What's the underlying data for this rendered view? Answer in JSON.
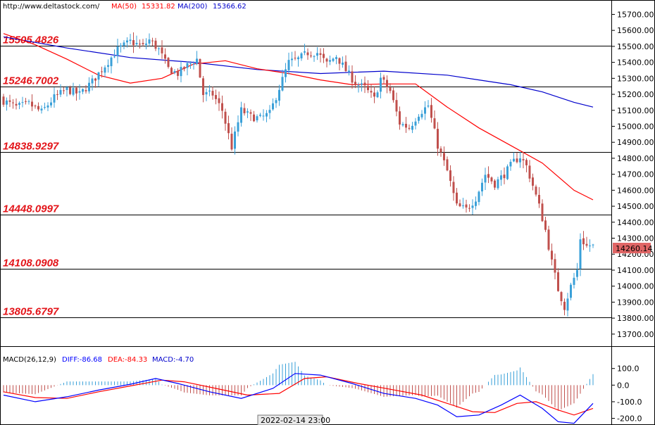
{
  "header": {
    "source": "http://www.deltastock.com/",
    "ma50_label": "MA(50)",
    "ma50_value": "15331.82",
    "ma200_label": "MA(200)",
    "ma200_value": "15366.62"
  },
  "colors": {
    "bull": "#3aa0d8",
    "bear": "#c0504d",
    "ma50": "#ff0000",
    "ma200": "#0000cc",
    "level_text": "#e3151a",
    "price_tag_bg": "#e06666",
    "macd_diff": "#0000ff",
    "macd_dea": "#ff0000",
    "hist_pos": "#3aa0d8",
    "hist_neg": "#c0504d"
  },
  "price_tag": "14260.14",
  "date_label": "2022-02-14 23:00",
  "macd_header": {
    "title": "MACD(26,12,9)",
    "diff": "DIFF:-86.68",
    "dea": "DEA:-84.33",
    "macd": "MACD:-4.70"
  },
  "chart_data": [
    {
      "type": "candlestick",
      "ylim": [
        13620,
        15790
      ],
      "yticks": [
        13700,
        13800,
        13900,
        14000,
        14100,
        14200,
        14300,
        14400,
        14500,
        14600,
        14700,
        14800,
        14900,
        15000,
        15100,
        15200,
        15300,
        15400,
        15500,
        15600,
        15700
      ],
      "ytick_labels": [
        "13700.00",
        "13800.00",
        "13900.00",
        "14000.00",
        "14100.00",
        "14200.00",
        "14300.00",
        "14400.00",
        "14500.00",
        "14600.00",
        "14700.00",
        "14800.00",
        "14900.00",
        "15000.00",
        "15100.00",
        "15200.00",
        "15300.00",
        "15400.00",
        "15500.00",
        "15600.00",
        "15700.00"
      ],
      "levels": [
        {
          "value": 15505.4826,
          "label": "15505.4826"
        },
        {
          "value": 15246.7002,
          "label": "15246.7002"
        },
        {
          "value": 14838.9297,
          "label": "14838.9297"
        },
        {
          "value": 14448.0997,
          "label": "14448.0997"
        },
        {
          "value": 14108.0908,
          "label": "14108.0908"
        },
        {
          "value": 13805.6797,
          "label": "13805.6797"
        }
      ],
      "close_anchors": [
        [
          0,
          15160
        ],
        [
          4,
          15120
        ],
        [
          8,
          15140
        ],
        [
          12,
          15090
        ],
        [
          16,
          15180
        ],
        [
          20,
          15230
        ],
        [
          24,
          15200
        ],
        [
          28,
          15280
        ],
        [
          32,
          15380
        ],
        [
          36,
          15480
        ],
        [
          40,
          15530
        ],
        [
          44,
          15500
        ],
        [
          46,
          15540
        ],
        [
          49,
          15480
        ],
        [
          52,
          15360
        ],
        [
          55,
          15330
        ],
        [
          58,
          15380
        ],
        [
          61,
          15420
        ],
        [
          63,
          15200
        ],
        [
          66,
          15200
        ],
        [
          69,
          15100
        ],
        [
          72,
          14870
        ],
        [
          75,
          15100
        ],
        [
          78,
          15060
        ],
        [
          81,
          15050
        ],
        [
          84,
          15080
        ],
        [
          87,
          15240
        ],
        [
          90,
          15400
        ],
        [
          93,
          15420
        ],
        [
          96,
          15460
        ],
        [
          99,
          15460
        ],
        [
          102,
          15390
        ],
        [
          105,
          15440
        ],
        [
          108,
          15350
        ],
        [
          111,
          15270
        ],
        [
          114,
          15240
        ],
        [
          117,
          15170
        ],
        [
          119,
          15300
        ],
        [
          122,
          15220
        ],
        [
          125,
          15020
        ],
        [
          128,
          14990
        ],
        [
          131,
          15080
        ],
        [
          134,
          15130
        ],
        [
          137,
          14880
        ],
        [
          140,
          14720
        ],
        [
          143,
          14500
        ],
        [
          146,
          14480
        ],
        [
          149,
          14550
        ],
        [
          152,
          14700
        ],
        [
          155,
          14640
        ],
        [
          158,
          14700
        ],
        [
          161,
          14780
        ],
        [
          163,
          14810
        ],
        [
          165,
          14750
        ],
        [
          167,
          14630
        ],
        [
          169,
          14500
        ],
        [
          171,
          14350
        ],
        [
          173,
          14150
        ],
        [
          175,
          13980
        ],
        [
          177,
          13870
        ],
        [
          179,
          14000
        ],
        [
          181,
          14100
        ],
        [
          182,
          14300
        ],
        [
          184,
          14250
        ],
        [
          186,
          14260
        ]
      ],
      "ma50": [
        [
          0,
          15580
        ],
        [
          10,
          15510
        ],
        [
          20,
          15420
        ],
        [
          30,
          15320
        ],
        [
          40,
          15270
        ],
        [
          50,
          15300
        ],
        [
          60,
          15390
        ],
        [
          70,
          15410
        ],
        [
          80,
          15360
        ],
        [
          90,
          15330
        ],
        [
          100,
          15290
        ],
        [
          110,
          15260
        ],
        [
          120,
          15265
        ],
        [
          130,
          15265
        ],
        [
          140,
          15120
        ],
        [
          150,
          14990
        ],
        [
          160,
          14880
        ],
        [
          170,
          14770
        ],
        [
          180,
          14600
        ],
        [
          186,
          14540
        ]
      ],
      "ma200": [
        [
          0,
          15560
        ],
        [
          20,
          15490
        ],
        [
          40,
          15430
        ],
        [
          60,
          15400
        ],
        [
          80,
          15355
        ],
        [
          100,
          15330
        ],
        [
          120,
          15345
        ],
        [
          140,
          15320
        ],
        [
          150,
          15290
        ],
        [
          160,
          15260
        ],
        [
          170,
          15215
        ],
        [
          180,
          15150
        ],
        [
          186,
          15120
        ]
      ],
      "last_price": 14260.14
    },
    {
      "type": "bar",
      "name": "MACD(26,12,9)",
      "ylim": [
        -240,
        230
      ],
      "yticks": [
        100,
        0,
        -100,
        -200
      ],
      "ytick_labels": [
        "100.0",
        "0.0",
        "-100.0",
        "-200.0"
      ],
      "diff_anchors": [
        [
          0,
          -60
        ],
        [
          10,
          -100
        ],
        [
          20,
          -70
        ],
        [
          30,
          -30
        ],
        [
          40,
          5
        ],
        [
          48,
          40
        ],
        [
          55,
          10
        ],
        [
          65,
          -40
        ],
        [
          75,
          -80
        ],
        [
          85,
          -20
        ],
        [
          92,
          70
        ],
        [
          100,
          60
        ],
        [
          110,
          10
        ],
        [
          120,
          -50
        ],
        [
          130,
          -80
        ],
        [
          137,
          -120
        ],
        [
          143,
          -190
        ],
        [
          150,
          -180
        ],
        [
          157,
          -120
        ],
        [
          163,
          -60
        ],
        [
          170,
          -140
        ],
        [
          175,
          -220
        ],
        [
          180,
          -230
        ],
        [
          186,
          -110
        ]
      ],
      "dea_anchors": [
        [
          0,
          -40
        ],
        [
          10,
          -75
        ],
        [
          20,
          -80
        ],
        [
          30,
          -40
        ],
        [
          40,
          -5
        ],
        [
          50,
          30
        ],
        [
          57,
          20
        ],
        [
          67,
          -20
        ],
        [
          77,
          -60
        ],
        [
          87,
          -50
        ],
        [
          95,
          40
        ],
        [
          102,
          50
        ],
        [
          112,
          10
        ],
        [
          122,
          -25
        ],
        [
          132,
          -60
        ],
        [
          140,
          -110
        ],
        [
          148,
          -160
        ],
        [
          155,
          -165
        ],
        [
          162,
          -110
        ],
        [
          168,
          -100
        ],
        [
          175,
          -150
        ],
        [
          180,
          -180
        ],
        [
          186,
          -140
        ]
      ]
    }
  ]
}
